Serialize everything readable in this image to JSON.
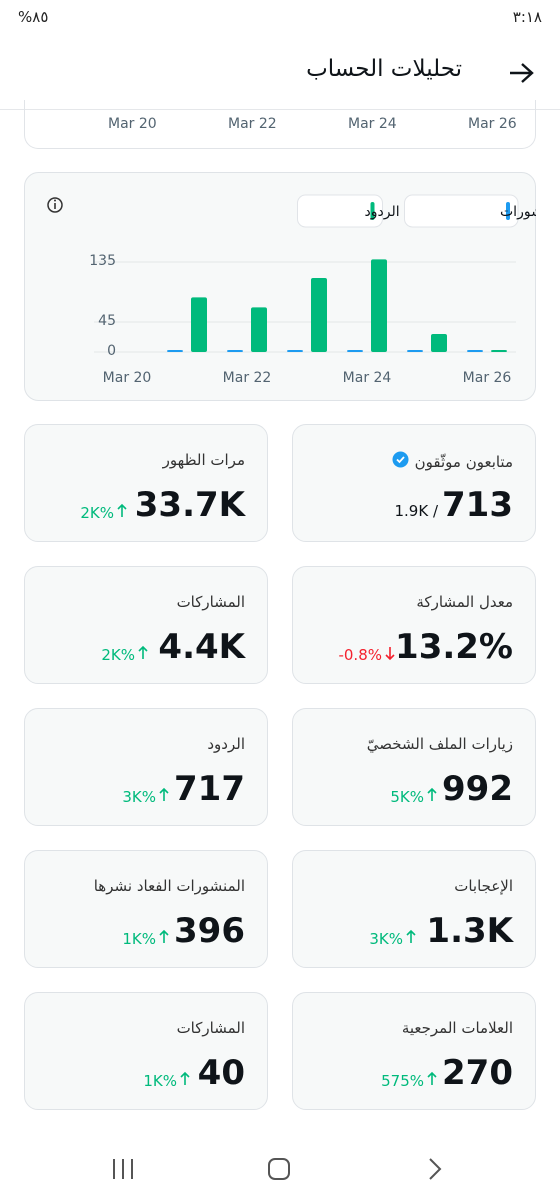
{
  "status_bar": {
    "time": "٣:١٨",
    "battery": "%٨٥"
  },
  "header": {
    "title": "تحليلات الحساب"
  },
  "top_axis": [
    "Mar 20",
    "Mar 22",
    "Mar 24",
    "Mar 26"
  ],
  "chart_data": {
    "type": "bar",
    "categories": [
      "Mar 20",
      null,
      "Mar 22",
      null,
      "Mar 24",
      null,
      "Mar 26"
    ],
    "series": [
      {
        "name": "المنشورات",
        "color": "#1d9bf0",
        "values": [
          0,
          1,
          1,
          1,
          1,
          1,
          0
        ]
      },
      {
        "name": "الردود",
        "color": "#00ba7c",
        "values": [
          0,
          82,
          67,
          111,
          139,
          27,
          1
        ]
      }
    ],
    "ylim": [
      0,
      140
    ],
    "yticks": [
      0,
      45,
      135
    ],
    "grid": true,
    "legend": "top-right"
  },
  "cards": [
    {
      "title": "متابعون موثّقون",
      "value": "713",
      "change": "1.9K /",
      "trend": "none",
      "verified": true
    },
    {
      "title": "مرات الظهور",
      "value": "33.7K",
      "change": "2K%",
      "trend": "up"
    },
    {
      "title": "معدل المشاركة",
      "value": "13.2%",
      "change": "-0.8%",
      "trend": "down"
    },
    {
      "title": "المشاركات",
      "value": "4.4K",
      "change": "2K%",
      "trend": "up"
    },
    {
      "title": "زيارات الملف الشخصيّ",
      "value": "992",
      "change": "5K%",
      "trend": "up"
    },
    {
      "title": "الردود",
      "value": "717",
      "change": "3K%",
      "trend": "up"
    },
    {
      "title": "الإعجابات",
      "value": "1.3K",
      "change": "3K%",
      "trend": "up"
    },
    {
      "title": "المنشورات الفعاد نشرها",
      "value": "396",
      "change": "1K%",
      "trend": "up"
    },
    {
      "title": "العلامات المرجعية",
      "value": "270",
      "change": "575%",
      "trend": "up"
    },
    {
      "title": "المشاركات",
      "value": "40",
      "change": "1K%",
      "trend": "up"
    }
  ]
}
